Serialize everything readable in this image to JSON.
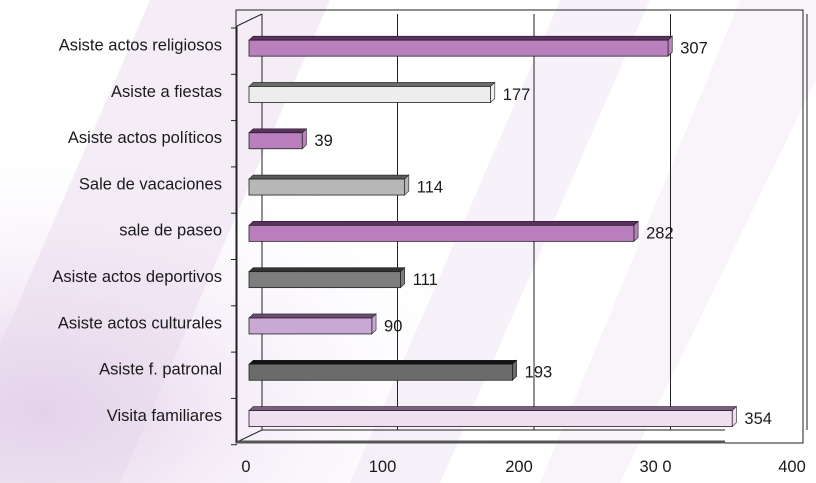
{
  "chart_data": {
    "type": "bar",
    "orientation": "horizontal",
    "style": "3d",
    "title": "",
    "xlabel": "",
    "ylabel": "",
    "xlim": [
      0,
      400
    ],
    "ticks": [
      0,
      100,
      200,
      300,
      400
    ],
    "tick_labels": [
      "0",
      "100",
      "200",
      "30 0",
      "400"
    ],
    "grid": true,
    "legend": "none",
    "categories": [
      "Asiste actos religiosos",
      "Asiste a fiestas",
      "Asiste actos políticos",
      "Sale de vacaciones",
      "sale de paseo",
      "Asiste actos deportivos",
      "Asiste actos culturales",
      "Asiste f. patronal",
      "Visita familiares"
    ],
    "values": [
      307,
      177,
      39,
      114,
      282,
      111,
      90,
      193,
      354
    ],
    "value_labels": [
      "307",
      "177",
      "39",
      "114",
      "282",
      "111",
      "90",
      "193",
      "354"
    ],
    "bar_colors": [
      "#b980bd",
      "#ededed",
      "#b980bd",
      "#b7b7b7",
      "#b980bd",
      "#7d7d7d",
      "#c9a9d4",
      "#6b6b6b",
      "#f0def1"
    ],
    "bar_edge_colors": [
      "#5e2f63",
      "#6a6a6a",
      "#5e2f63",
      "#5a5a5a",
      "#5e2f63",
      "#333333",
      "#6e4a78",
      "#111111",
      "#7b5e80"
    ]
  }
}
